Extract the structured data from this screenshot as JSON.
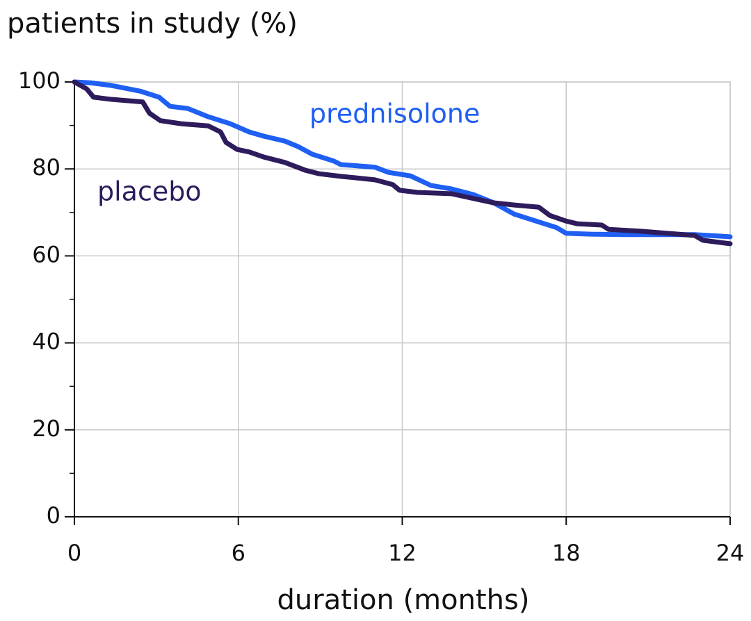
{
  "chart_data": {
    "type": "line",
    "title": "patients in study (%)",
    "xlabel": "duration (months)",
    "xlim": [
      0,
      24
    ],
    "xticks": [
      0,
      6,
      12,
      18,
      24
    ],
    "ylim": [
      0,
      100
    ],
    "yticks": [
      0,
      20,
      40,
      60,
      80,
      100
    ],
    "minor_yticks": [
      10,
      30,
      50,
      70,
      90
    ],
    "grid": true,
    "series": [
      {
        "name": "prednisolone",
        "color": "#1f5ff2",
        "x": [
          0,
          0.6,
          1.35,
          2.4,
          3.1,
          3.5,
          4.15,
          4.9,
          5.7,
          6.4,
          6.95,
          7.7,
          8.2,
          8.7,
          9.5,
          9.75,
          11,
          11.5,
          12.3,
          13.05,
          13.8,
          14.6,
          15.35,
          16.1,
          16.9,
          17.65,
          18,
          18.9,
          20.2,
          22.7,
          24
        ],
        "values": [
          100,
          99.8,
          99.2,
          97.9,
          96.5,
          94.4,
          93.9,
          92,
          90.4,
          88.5,
          87.5,
          86.4,
          85.1,
          83.4,
          81.8,
          81,
          80.4,
          79.2,
          78.4,
          76.2,
          75.4,
          74.1,
          72.2,
          69.6,
          68,
          66.5,
          65.2,
          65,
          64.9,
          64.9,
          64.4
        ]
      },
      {
        "name": "placebo",
        "color": "#2e1b5c",
        "x": [
          0,
          0.45,
          0.7,
          1.35,
          2.5,
          2.75,
          3.15,
          3.9,
          4.9,
          5.35,
          5.55,
          5.95,
          6.4,
          6.95,
          7.7,
          8.45,
          8.95,
          9.75,
          11,
          11.65,
          11.9,
          12.55,
          13.8,
          14.6,
          15.35,
          16.1,
          17,
          17.4,
          18,
          18.4,
          19.3,
          19.55,
          20.7,
          22.7,
          23,
          24
        ],
        "values": [
          100,
          98.4,
          96.5,
          96,
          95.4,
          92.8,
          91.1,
          90.4,
          89.9,
          88.5,
          86.1,
          84.5,
          83.9,
          82.7,
          81.5,
          79.7,
          78.9,
          78.3,
          77.5,
          76.4,
          75.1,
          74.6,
          74.3,
          73.2,
          72.2,
          71.7,
          71.2,
          69.3,
          68,
          67.4,
          67.1,
          66.1,
          65.7,
          64.7,
          63.6,
          62.8
        ]
      }
    ]
  }
}
